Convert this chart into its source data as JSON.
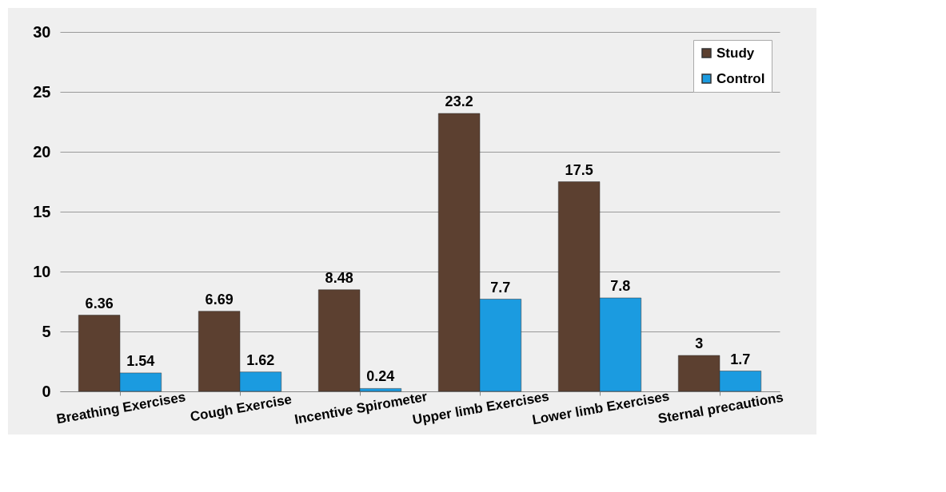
{
  "chart_data": {
    "type": "bar",
    "categories": [
      "Breathing Exercises",
      "Cough Exercise",
      "Incentive Spirometer",
      "Upper limb Exercises",
      "Lower limb Exercises",
      "Sternal precautions"
    ],
    "series": [
      {
        "name": "Study",
        "color": "#5c4030",
        "values": [
          6.36,
          6.69,
          8.48,
          23.2,
          17.5,
          3
        ]
      },
      {
        "name": "Control",
        "color": "#1b9be0",
        "values": [
          1.54,
          1.62,
          0.24,
          7.7,
          7.8,
          1.7
        ]
      }
    ],
    "ylim": [
      0,
      30
    ],
    "yticks": [
      0,
      5,
      10,
      15,
      20,
      25,
      30
    ],
    "grid": "y",
    "legend": "top right",
    "data_labels": true
  }
}
